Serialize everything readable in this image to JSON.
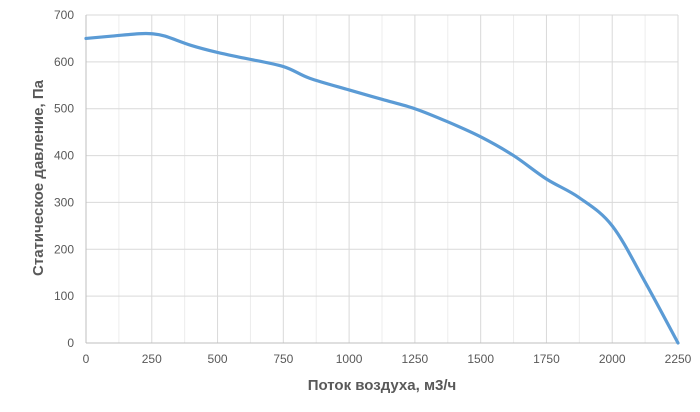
{
  "chart_data": {
    "type": "line",
    "title": "",
    "xlabel": "Поток воздуха, м3/ч",
    "ylabel": "Статическое давление, Па",
    "xlim": [
      0,
      2250
    ],
    "ylim": [
      0,
      700
    ],
    "xticks": [
      0,
      250,
      500,
      750,
      1000,
      1250,
      1500,
      1750,
      2000,
      2250
    ],
    "yticks": [
      0,
      100,
      200,
      300,
      400,
      500,
      600,
      700
    ],
    "grid": true,
    "legend": "none",
    "series": [
      {
        "color": "#5b9bd5",
        "x": [
          0,
          100,
          200,
          250,
          300,
          400,
          500,
          600,
          750,
          850,
          1000,
          1125,
          1250,
          1375,
          1500,
          1625,
          1750,
          1875,
          2000,
          2125,
          2250
        ],
        "y": [
          650,
          655,
          660,
          660,
          655,
          635,
          620,
          608,
          590,
          565,
          540,
          520,
          500,
          472,
          440,
          400,
          350,
          310,
          250,
          130,
          0
        ]
      }
    ]
  }
}
